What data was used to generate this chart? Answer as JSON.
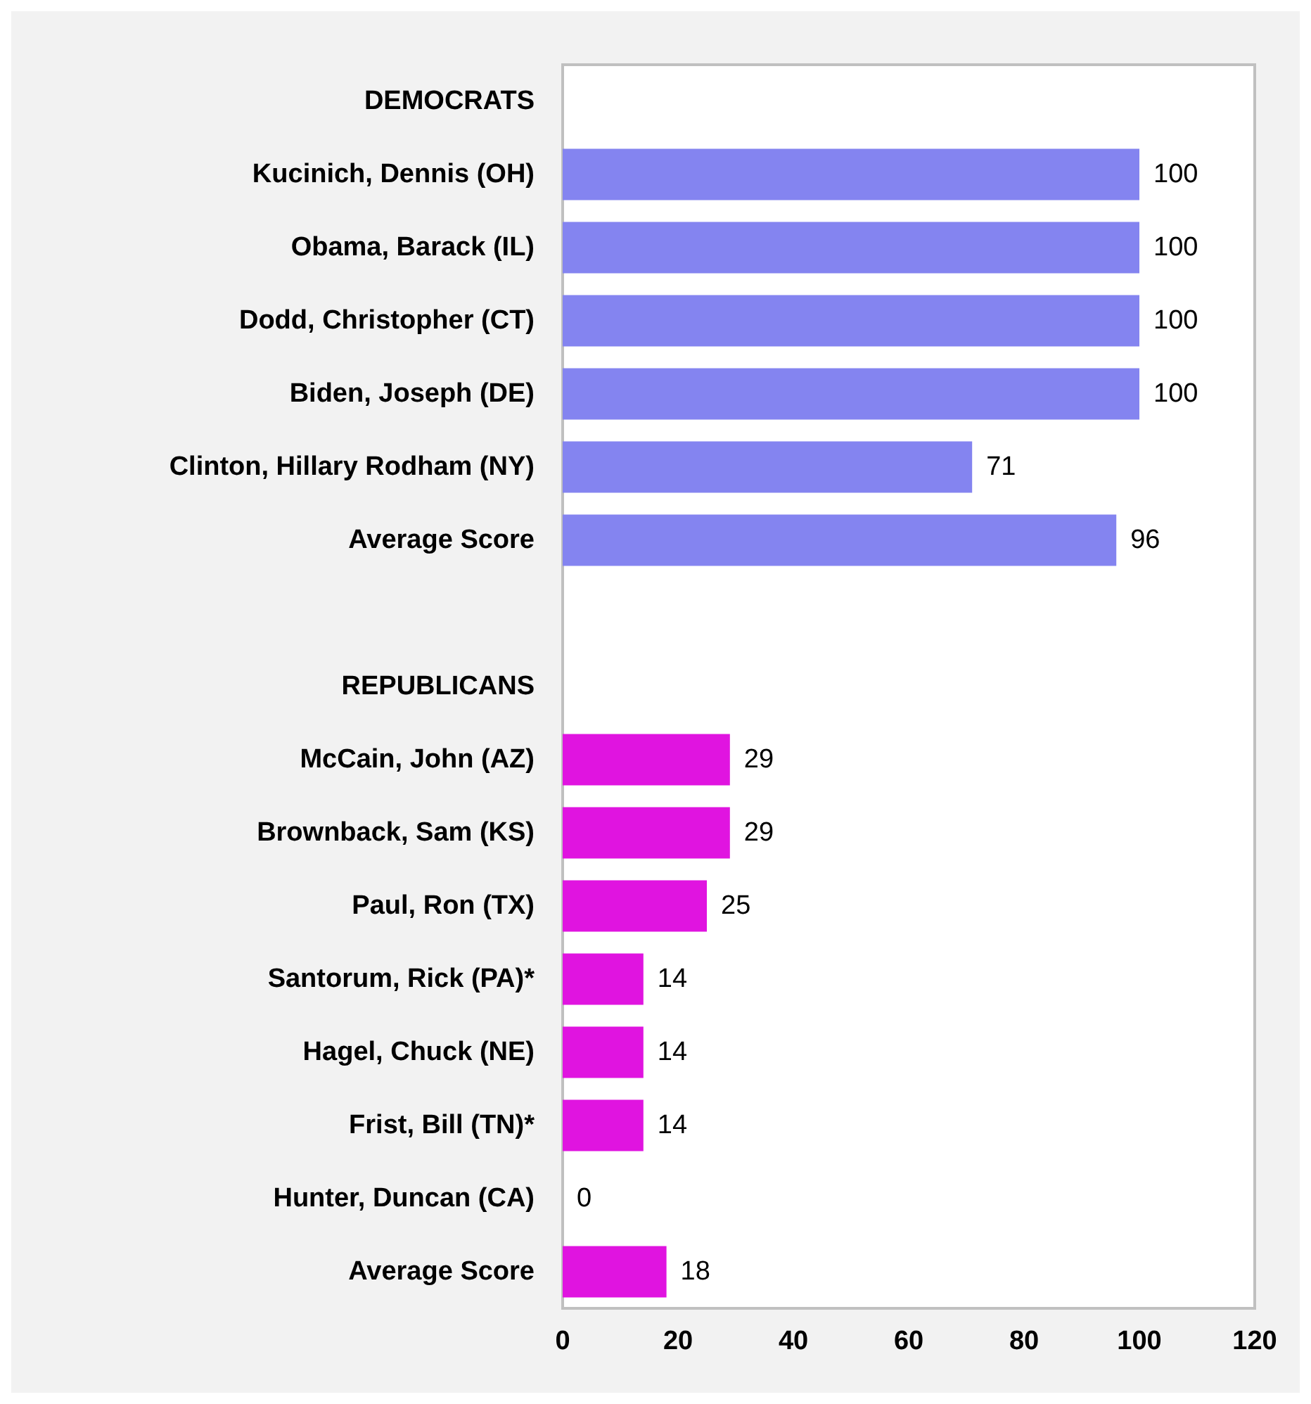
{
  "chart_data": {
    "type": "bar",
    "orientation": "horizontal",
    "categories": [
      "DEMOCRATS",
      "Kucinich, Dennis (OH)",
      "Obama, Barack (IL)",
      "Dodd, Christopher (CT)",
      "Biden, Joseph (DE)",
      "Clinton, Hillary Rodham (NY)",
      "Average Score",
      null,
      "REPUBLICANS",
      "McCain, John (AZ)",
      "Brownback, Sam (KS)",
      "Paul, Ron (TX)",
      "Santorum, Rick (PA)*",
      "Hagel, Chuck (NE)",
      "Frist, Bill (TN)*",
      "Hunter, Duncan (CA)",
      "Average Score"
    ],
    "values": [
      null,
      100,
      100,
      100,
      100,
      71,
      96,
      null,
      null,
      29,
      29,
      25,
      14,
      14,
      14,
      0,
      18
    ],
    "colors": [
      "#8484f0",
      "#8484f0",
      "#8484f0",
      "#8484f0",
      "#8484f0",
      "#8484f0",
      "#8484f0",
      "#8484f0",
      "#e014e0",
      "#e014e0",
      "#e014e0",
      "#e014e0",
      "#e014e0",
      "#e014e0",
      "#e014e0",
      "#e014e0",
      "#e014e0"
    ],
    "xlim": [
      0,
      120
    ],
    "xticks": [
      0,
      20,
      40,
      60,
      80,
      100,
      120
    ],
    "data_labels": true
  }
}
